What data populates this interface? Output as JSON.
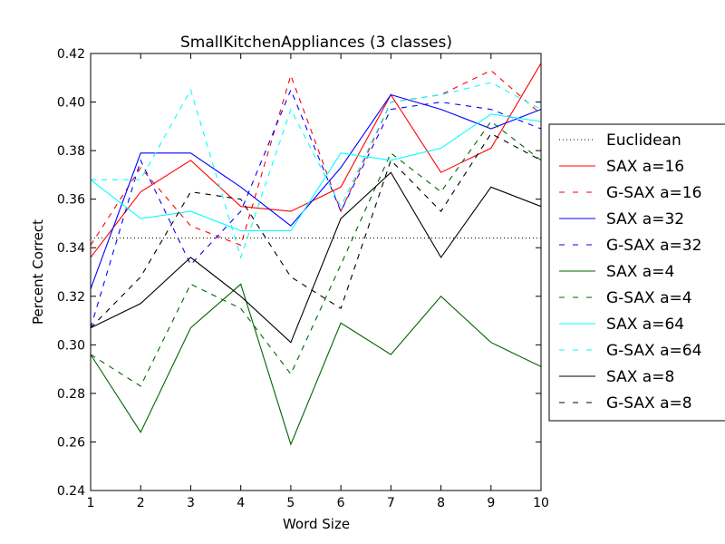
{
  "chart_data": {
    "type": "line",
    "title": "SmallKitchenAppliances (3 classes)",
    "xlabel": "Word Size",
    "ylabel": "Percent Correct",
    "xlim": [
      1,
      10
    ],
    "ylim": [
      0.24,
      0.42
    ],
    "xticks": [
      "1",
      "2",
      "3",
      "4",
      "5",
      "6",
      "7",
      "8",
      "9",
      "10"
    ],
    "yticks": [
      "0.24",
      "0.26",
      "0.28",
      "0.30",
      "0.32",
      "0.34",
      "0.36",
      "0.38",
      "0.40",
      "0.42"
    ],
    "grid": false,
    "legend_position": "right, outside plot",
    "x": [
      1,
      2,
      3,
      4,
      5,
      6,
      7,
      8,
      9,
      10
    ],
    "series": [
      {
        "name": "Euclidean",
        "color": "#000000",
        "style": "dotted",
        "values": [
          0.344,
          0.344,
          0.344,
          0.344,
          0.344,
          0.344,
          0.344,
          0.344,
          0.344,
          0.344
        ]
      },
      {
        "name": "SAX a=16",
        "color": "#ff0000",
        "style": "solid",
        "values": [
          0.336,
          0.363,
          0.376,
          0.357,
          0.355,
          0.365,
          0.403,
          0.371,
          0.381,
          0.416
        ]
      },
      {
        "name": "G-SAX a=16",
        "color": "#ff0000",
        "style": "dashed",
        "values": [
          0.341,
          0.373,
          0.349,
          0.341,
          0.411,
          0.355,
          0.4,
          0.403,
          0.413,
          0.395
        ]
      },
      {
        "name": "SAX a=32",
        "color": "#0000ff",
        "style": "solid",
        "values": [
          0.323,
          0.379,
          0.379,
          0.365,
          0.349,
          0.373,
          0.403,
          0.397,
          0.389,
          0.397
        ]
      },
      {
        "name": "G-SAX a=32",
        "color": "#0000ff",
        "style": "dashed",
        "values": [
          0.307,
          0.376,
          0.333,
          0.355,
          0.405,
          0.355,
          0.397,
          0.4,
          0.397,
          0.389
        ]
      },
      {
        "name": "SAX a=4",
        "color": "#006400",
        "style": "solid",
        "values": [
          0.296,
          0.264,
          0.307,
          0.325,
          0.259,
          0.309,
          0.296,
          0.32,
          0.301,
          0.291
        ]
      },
      {
        "name": "G-SAX a=4",
        "color": "#006400",
        "style": "dashed",
        "values": [
          0.296,
          0.283,
          0.325,
          0.315,
          0.288,
          0.333,
          0.379,
          0.363,
          0.392,
          0.376
        ]
      },
      {
        "name": "SAX a=64",
        "color": "#00ffff",
        "style": "solid",
        "values": [
          0.368,
          0.352,
          0.355,
          0.347,
          0.347,
          0.379,
          0.376,
          0.381,
          0.395,
          0.392
        ]
      },
      {
        "name": "G-SAX a=64",
        "color": "#00ffff",
        "style": "dashed",
        "values": [
          0.368,
          0.368,
          0.405,
          0.336,
          0.397,
          0.357,
          0.4,
          0.403,
          0.408,
          0.397
        ]
      },
      {
        "name": "SAX a=8",
        "color": "#000000",
        "style": "solid",
        "values": [
          0.307,
          0.317,
          0.336,
          0.32,
          0.301,
          0.352,
          0.371,
          0.336,
          0.365,
          0.357
        ]
      },
      {
        "name": "G-SAX a=8",
        "color": "#000000",
        "style": "dashed",
        "values": [
          0.307,
          0.328,
          0.363,
          0.36,
          0.328,
          0.315,
          0.376,
          0.355,
          0.387,
          0.376
        ]
      }
    ]
  }
}
